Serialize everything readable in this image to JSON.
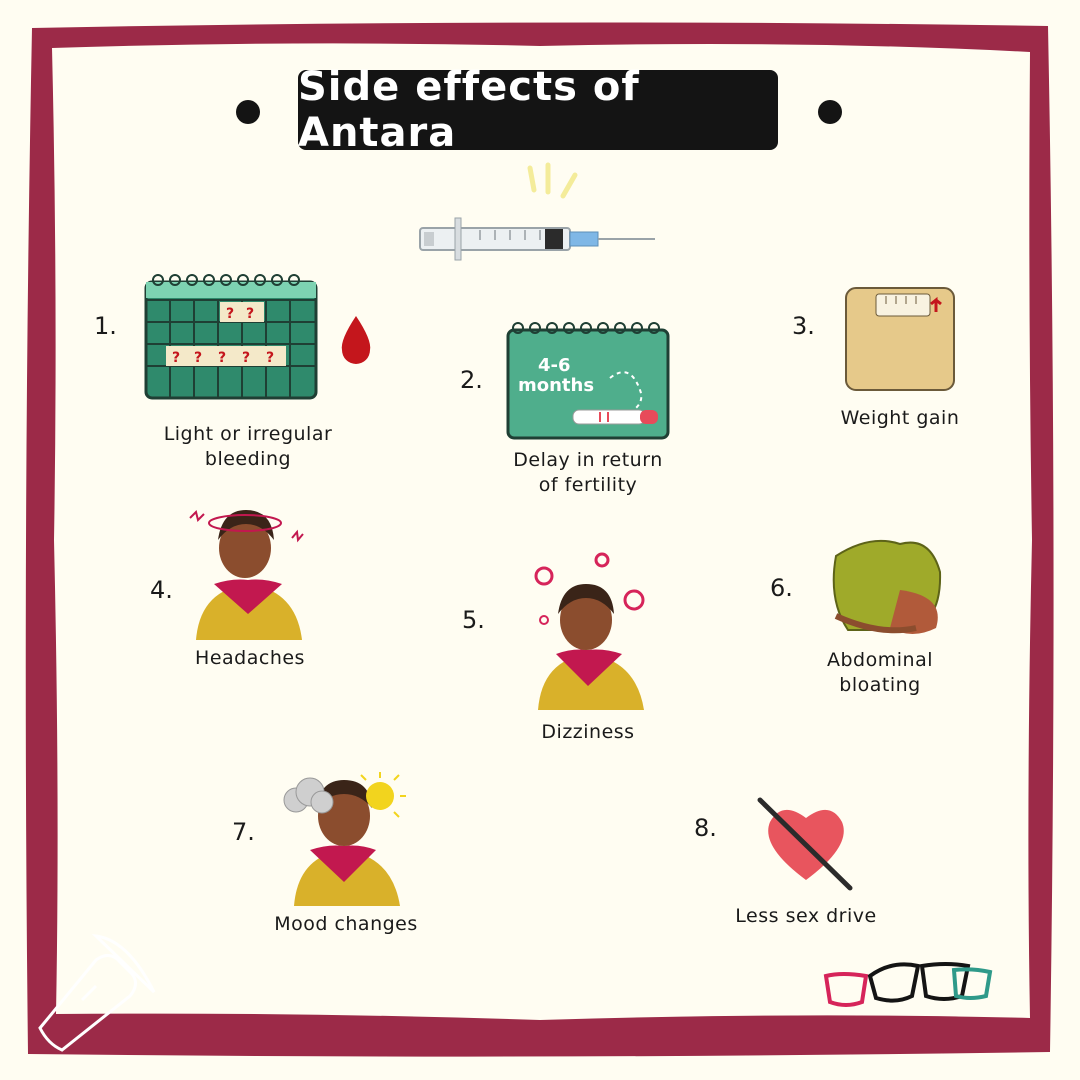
{
  "title": "Side effects of Antara",
  "items": [
    {
      "number": "1.",
      "caption_line1": "Light or irregular",
      "caption_line2": "bleeding",
      "icon": "calendar-question-icon"
    },
    {
      "number": "2.",
      "caption_line1": "Delay in return",
      "caption_line2": "of fertility",
      "icon": "calendar-pregnancy-test-icon",
      "calendar_label_line1": "4-6",
      "calendar_label_line2": "months"
    },
    {
      "number": "3.",
      "caption_line1": "Weight gain",
      "caption_line2": "",
      "icon": "weighing-scale-icon"
    },
    {
      "number": "4.",
      "caption_line1": "Headaches",
      "caption_line2": "",
      "icon": "woman-headache-icon"
    },
    {
      "number": "5.",
      "caption_line1": "Dizziness",
      "caption_line2": "",
      "icon": "woman-dizzy-icon"
    },
    {
      "number": "6.",
      "caption_line1": "Abdominal",
      "caption_line2": "bloating",
      "icon": "bloated-belly-icon"
    },
    {
      "number": "7.",
      "caption_line1": "Mood changes",
      "caption_line2": "",
      "icon": "woman-mood-icon"
    },
    {
      "number": "8.",
      "caption_line1": "Less sex drive",
      "caption_line2": "",
      "icon": "crossed-heart-icon"
    }
  ],
  "colors": {
    "frame": "#9c2a48",
    "background": "#fffdf2",
    "title_bg": "#141414",
    "calendar": "#2f8a6c",
    "calendar_soft": "#4fae8c",
    "heart": "#e8555e",
    "blood": "#c4161c"
  }
}
